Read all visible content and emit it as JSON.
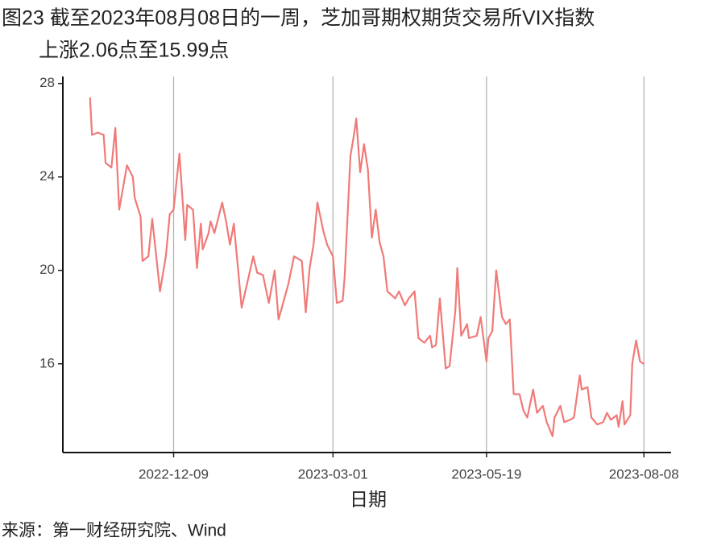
{
  "chart_data": {
    "type": "line",
    "title": [
      "图23  截至2023年08月08日的一周，芝加哥期权期货交易所VIX指数",
      "上涨2.06点至15.99点"
    ],
    "xlabel": "日期",
    "source": "来源：第一财经研究院、Wind",
    "x": [
      "2022-10-27",
      "2022-10-28",
      "2022-10-31",
      "2022-11-03",
      "2022-11-04",
      "2022-11-07",
      "2022-11-09",
      "2022-11-11",
      "2022-11-15",
      "2022-11-18",
      "2022-11-19",
      "2022-11-22",
      "2022-11-23",
      "2022-11-26",
      "2022-11-28",
      "2022-12-02",
      "2022-12-05",
      "2022-12-07",
      "2022-12-09",
      "2022-12-12",
      "2022-12-15",
      "2022-12-16",
      "2022-12-19",
      "2022-12-21",
      "2022-12-23",
      "2022-12-24",
      "2022-12-27",
      "2022-12-28",
      "2022-12-30",
      "2023-01-03",
      "2023-01-05",
      "2023-01-07",
      "2023-01-09",
      "2023-01-13",
      "2023-01-16",
      "2023-01-19",
      "2023-01-21",
      "2023-01-24",
      "2023-01-27",
      "2023-01-30",
      "2023-02-01",
      "2023-02-04",
      "2023-02-06",
      "2023-02-09",
      "2023-02-13",
      "2023-02-15",
      "2023-02-17",
      "2023-02-19",
      "2023-02-21",
      "2023-02-24",
      "2023-02-26",
      "2023-03-01",
      "2023-03-03",
      "2023-03-06",
      "2023-03-07",
      "2023-03-10",
      "2023-03-12",
      "2023-03-13",
      "2023-03-15",
      "2023-03-17",
      "2023-03-19",
      "2023-03-21",
      "2023-03-23",
      "2023-03-25",
      "2023-03-27",
      "2023-03-29",
      "2023-04-02",
      "2023-04-04",
      "2023-04-07",
      "2023-04-09",
      "2023-04-12",
      "2023-04-14",
      "2023-04-17",
      "2023-04-20",
      "2023-04-21",
      "2023-04-23",
      "2023-04-25",
      "2023-04-28",
      "2023-04-30",
      "2023-05-03",
      "2023-05-04",
      "2023-05-06",
      "2023-05-09",
      "2023-05-10",
      "2023-05-14",
      "2023-05-16",
      "2023-05-19",
      "2023-05-20",
      "2023-05-22",
      "2023-05-24",
      "2023-05-27",
      "2023-05-29",
      "2023-05-31",
      "2023-06-02",
      "2023-06-05",
      "2023-06-07",
      "2023-06-09",
      "2023-06-12",
      "2023-06-14",
      "2023-06-17",
      "2023-06-19",
      "2023-06-22",
      "2023-06-23",
      "2023-06-26",
      "2023-06-28",
      "2023-07-01",
      "2023-07-03",
      "2023-07-06",
      "2023-07-07",
      "2023-07-10",
      "2023-07-12",
      "2023-07-15",
      "2023-07-18",
      "2023-07-20",
      "2023-07-22",
      "2023-07-25",
      "2023-07-26",
      "2023-07-28",
      "2023-07-29",
      "2023-08-01",
      "2023-08-02",
      "2023-08-04",
      "2023-08-06",
      "2023-08-08"
    ],
    "series": [
      {
        "color": "#f07a78",
        "values": [
          27.4,
          25.8,
          25.9,
          25.8,
          24.6,
          24.4,
          26.1,
          22.6,
          24.5,
          24.0,
          23.1,
          22.3,
          20.4,
          20.6,
          22.2,
          19.1,
          20.6,
          22.4,
          22.6,
          25.0,
          21.3,
          22.8,
          22.6,
          20.1,
          22.0,
          20.9,
          21.6,
          22.1,
          21.6,
          22.9,
          22.1,
          21.1,
          22.0,
          18.4,
          19.5,
          20.6,
          19.9,
          19.8,
          18.6,
          20.0,
          17.9,
          18.8,
          19.4,
          20.6,
          20.4,
          18.2,
          20.1,
          21.1,
          22.9,
          21.7,
          21.1,
          20.6,
          18.6,
          18.7,
          19.7,
          24.9,
          25.9,
          26.5,
          24.2,
          25.4,
          24.3,
          21.4,
          22.6,
          21.2,
          20.6,
          19.1,
          18.8,
          19.1,
          18.5,
          18.8,
          19.1,
          17.1,
          16.9,
          17.2,
          16.7,
          16.8,
          18.8,
          15.8,
          15.9,
          18.3,
          20.1,
          17.2,
          17.7,
          17.1,
          17.2,
          18.0,
          16.1,
          17.1,
          17.4,
          20.0,
          18.0,
          17.7,
          17.9,
          14.7,
          14.7,
          14.0,
          13.7,
          14.9,
          13.9,
          14.2,
          13.5,
          12.9,
          13.7,
          14.2,
          13.5,
          13.6,
          13.7,
          15.5,
          14.9,
          15.0,
          13.7,
          13.4,
          13.5,
          13.9,
          13.6,
          13.8,
          13.3,
          14.4,
          13.4,
          13.8,
          16.0,
          17.0,
          16.1,
          15.99
        ]
      }
    ],
    "xlim": [
      "2022-10-13",
      "2023-08-22"
    ],
    "xticks": [
      "2022-12-09",
      "2023-03-01",
      "2023-05-19",
      "2023-08-08"
    ],
    "ylim": [
      12.2,
      28.3
    ],
    "yticks": [
      16,
      20,
      24,
      28
    ],
    "grid": "x"
  }
}
